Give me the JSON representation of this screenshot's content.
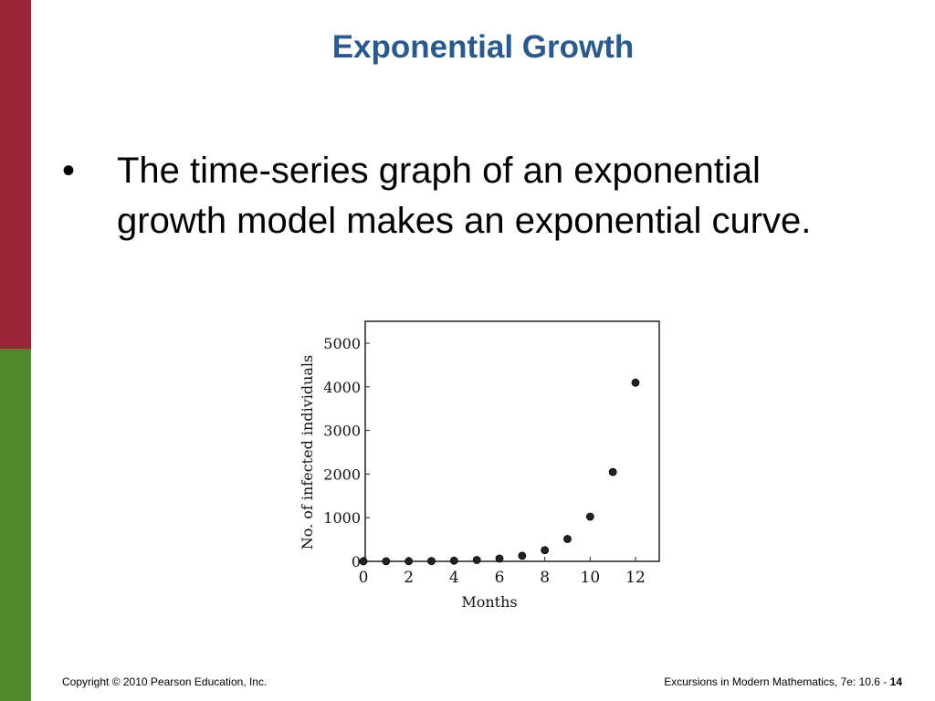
{
  "slide": {
    "title": "Exponential Growth",
    "bullet_marker": "•",
    "bullet_text": "The time-series graph of an exponential growth model makes an exponential curve."
  },
  "footer": {
    "copyright": "Copyright © 2010 Pearson Education, Inc.",
    "reference": "Excursions in Modern Mathematics, 7e: 10.6 - ",
    "page_number": "14"
  },
  "colors": {
    "title": "#2a5a8c",
    "sidebar_top": "#9b2335",
    "sidebar_bottom": "#4c8a2b"
  },
  "chart_data": {
    "type": "scatter",
    "title": "",
    "xlabel": "Months",
    "ylabel": "No. of infected individuals",
    "xlim": [
      0,
      13
    ],
    "ylim": [
      0,
      5000
    ],
    "xticks": [
      0,
      2,
      4,
      6,
      8,
      10,
      12
    ],
    "yticks": [
      0,
      1000,
      2000,
      3000,
      4000,
      5000
    ],
    "grid": false,
    "series": [
      {
        "x": [
          0,
          1,
          2,
          3,
          4,
          5,
          6,
          7,
          8,
          9,
          10,
          11,
          12
        ],
        "y": [
          1,
          2,
          4,
          8,
          16,
          32,
          64,
          128,
          256,
          512,
          1024,
          2048,
          4096
        ]
      }
    ]
  }
}
